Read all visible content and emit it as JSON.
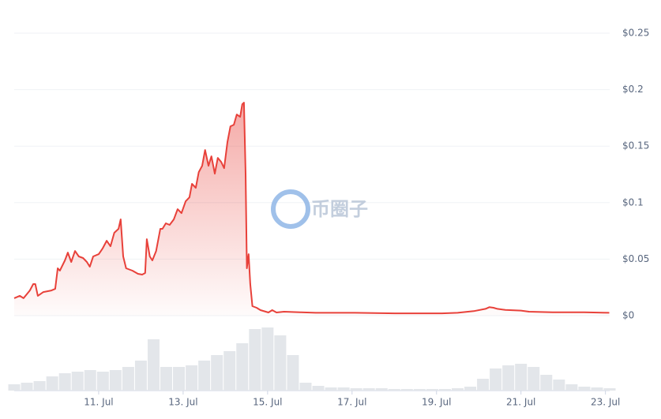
{
  "chart_data": {
    "type": "line",
    "watermark": "币圈子",
    "color": "#e8413a",
    "fill_area": true,
    "grid": true,
    "x": [
      9.0,
      9.13,
      9.22,
      9.37,
      9.45,
      9.5,
      9.56,
      9.69,
      9.88,
      9.97,
      10.03,
      10.08,
      10.2,
      10.27,
      10.35,
      10.44,
      10.53,
      10.63,
      10.72,
      10.79,
      10.87,
      11.0,
      11.09,
      11.19,
      11.28,
      11.37,
      11.47,
      11.52,
      11.58,
      11.65,
      11.8,
      11.93,
      12.03,
      12.1,
      12.14,
      12.21,
      12.27,
      12.36,
      12.46,
      12.51,
      12.59,
      12.68,
      12.78,
      12.87,
      12.96,
      13.06,
      13.15,
      13.21,
      13.3,
      13.37,
      13.45,
      13.52,
      13.6,
      13.67,
      13.75,
      13.82,
      13.9,
      13.97,
      14.05,
      14.12,
      14.2,
      14.27,
      14.35,
      14.4,
      14.44,
      14.48,
      14.51,
      14.55,
      14.59,
      14.64,
      14.74,
      14.83,
      15.02,
      15.11,
      15.21,
      15.39,
      15.77,
      16.14,
      17.07,
      18.01,
      19.13,
      19.5,
      19.88,
      20.16,
      20.25,
      20.35,
      20.44,
      20.63,
      21.0,
      21.19,
      21.75,
      22.5,
      23.09
    ],
    "values": [
      0.0154,
      0.0175,
      0.0154,
      0.0223,
      0.0279,
      0.0279,
      0.0175,
      0.0209,
      0.0223,
      0.0237,
      0.0419,
      0.0398,
      0.0489,
      0.0558,
      0.0475,
      0.0572,
      0.0524,
      0.051,
      0.0475,
      0.0433,
      0.0524,
      0.0544,
      0.0593,
      0.0663,
      0.0614,
      0.0733,
      0.0768,
      0.0852,
      0.0524,
      0.0419,
      0.0398,
      0.037,
      0.0363,
      0.0377,
      0.0677,
      0.0524,
      0.0489,
      0.0572,
      0.0768,
      0.0768,
      0.0817,
      0.0803,
      0.0852,
      0.0942,
      0.0907,
      0.1012,
      0.1047,
      0.1166,
      0.1131,
      0.127,
      0.1326,
      0.1466,
      0.1326,
      0.141,
      0.1256,
      0.1396,
      0.1361,
      0.1305,
      0.1536,
      0.1675,
      0.1689,
      0.178,
      0.1759,
      0.1871,
      0.1885,
      0.1256,
      0.0419,
      0.0544,
      0.0279,
      0.0084,
      0.007,
      0.0049,
      0.0028,
      0.0049,
      0.0028,
      0.0035,
      0.003,
      0.0025,
      0.0025,
      0.002,
      0.002,
      0.0025,
      0.004,
      0.006,
      0.0075,
      0.007,
      0.006,
      0.005,
      0.0045,
      0.0035,
      0.003,
      0.003,
      0.0025
    ],
    "xlim": [
      9,
      23.1
    ],
    "xticks": [
      {
        "value": 11,
        "label": "11. Jul"
      },
      {
        "value": 13,
        "label": "13. Jul"
      },
      {
        "value": 15,
        "label": "15. Jul"
      },
      {
        "value": 17,
        "label": "17. Jul"
      },
      {
        "value": 19,
        "label": "19. Jul"
      },
      {
        "value": 21,
        "label": "21. Jul"
      },
      {
        "value": 23,
        "label": "23. Jul"
      }
    ],
    "ylim": [
      0,
      0.25
    ],
    "yticks": [
      {
        "value": 0,
        "label": "$0"
      },
      {
        "value": 0.05,
        "label": "$0.05"
      },
      {
        "value": 0.1,
        "label": "$0.1"
      },
      {
        "value": 0.15,
        "label": "$0.15"
      },
      {
        "value": 0.2,
        "label": "$0.2"
      },
      {
        "value": 0.25,
        "label": "$0.25"
      }
    ],
    "volume": {
      "color": "#e3e6ea",
      "ylim": [
        0,
        90
      ],
      "x": [
        9.0,
        9.3,
        9.6,
        9.9,
        10.2,
        10.5,
        10.8,
        11.1,
        11.4,
        11.7,
        12.0,
        12.3,
        12.6,
        12.9,
        13.2,
        13.5,
        13.8,
        14.1,
        14.4,
        14.7,
        15.0,
        15.3,
        15.6,
        15.9,
        16.2,
        16.5,
        16.8,
        17.1,
        17.4,
        17.7,
        18.0,
        18.3,
        18.6,
        18.9,
        19.2,
        19.5,
        19.8,
        20.1,
        20.4,
        20.7,
        21.0,
        21.3,
        21.6,
        21.9,
        22.2,
        22.5,
        22.8,
        23.1
      ],
      "values": [
        8,
        10,
        12,
        18,
        22,
        24,
        26,
        24,
        26,
        30,
        38,
        65,
        30,
        30,
        32,
        38,
        45,
        50,
        60,
        78,
        80,
        70,
        45,
        10,
        6,
        4,
        4,
        3,
        3,
        3,
        2,
        2,
        2,
        2,
        2,
        3,
        5,
        15,
        28,
        32,
        34,
        30,
        20,
        14,
        8,
        5,
        4,
        3
      ]
    }
  }
}
